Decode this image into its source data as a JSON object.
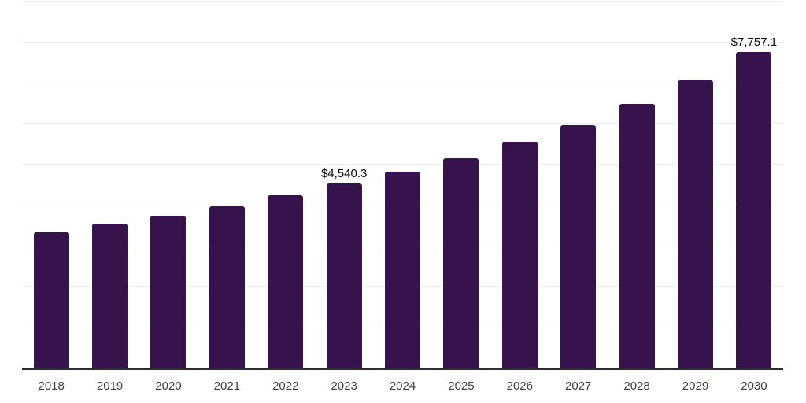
{
  "chart_data": {
    "type": "bar",
    "title": "",
    "xlabel": "",
    "ylabel": "",
    "categories": [
      "2018",
      "2019",
      "2020",
      "2021",
      "2022",
      "2023",
      "2024",
      "2025",
      "2026",
      "2027",
      "2028",
      "2029",
      "2030"
    ],
    "values": [
      3345,
      3560,
      3750,
      3980,
      4250,
      4540.3,
      4830,
      5155,
      5560,
      5960,
      6480,
      7060,
      7757.1
    ],
    "bar_labels": [
      "",
      "",
      "",
      "",
      "",
      "$4,540.3",
      "",
      "",
      "",
      "",
      "",
      "",
      "$7,757.1"
    ],
    "ylim": [
      0,
      9000
    ],
    "gridline_step": 1000,
    "grid": "horizontal",
    "legend": "none",
    "y_axis_labels": "none",
    "colors": {
      "bar": "#36134D",
      "gridline": "#EDEDED",
      "axis": "#2D2D2D",
      "value_label": "#0A0A0A",
      "tick_label": "#3D3D3D",
      "background": "#FFFFFF"
    }
  }
}
